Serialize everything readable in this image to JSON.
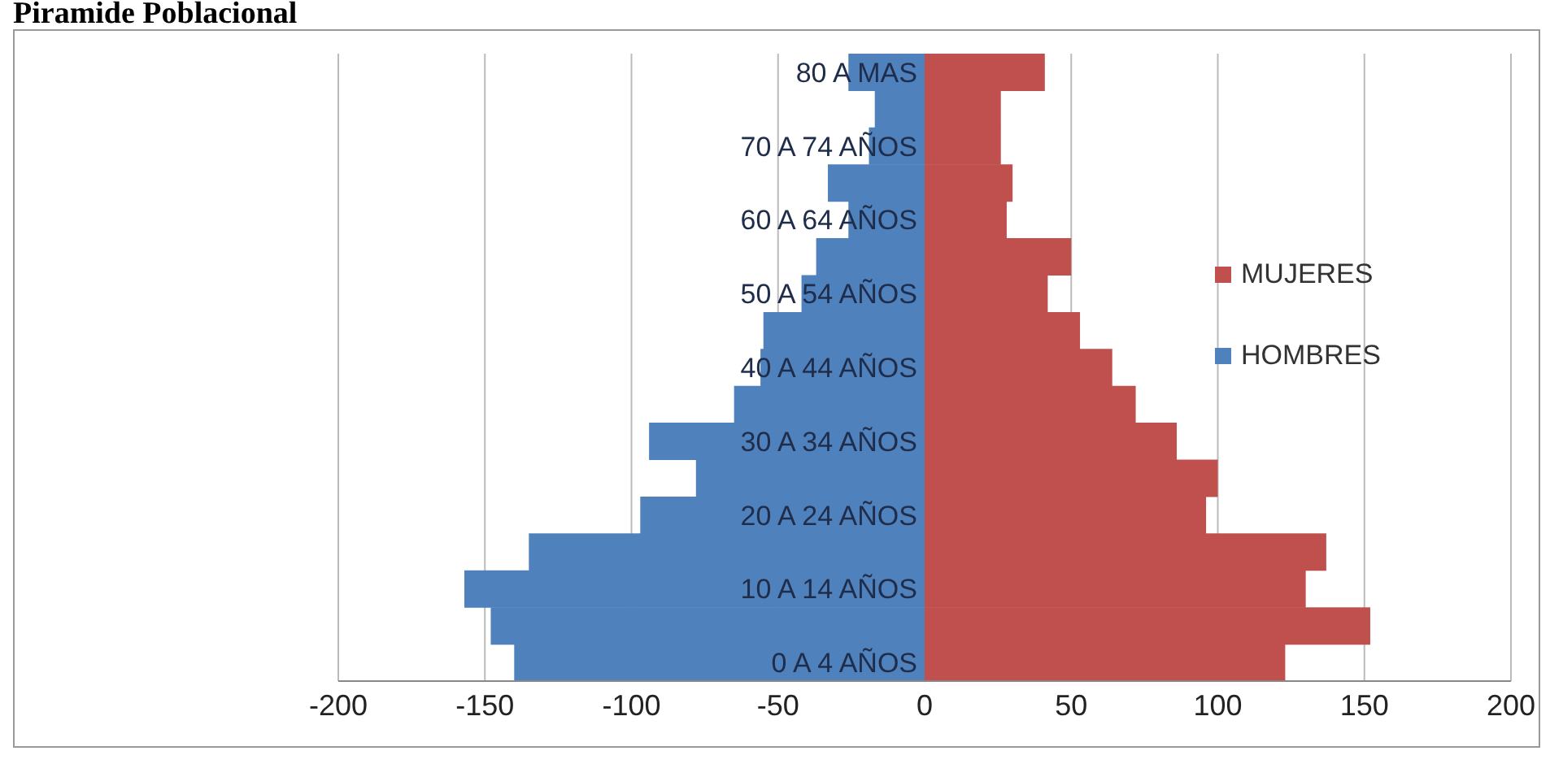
{
  "chart_data": {
    "type": "bar",
    "orientation": "horizontal",
    "title": "Piramide Poblacional",
    "categories": [
      "80 A MAS",
      null,
      "70 A 74 AÑOS",
      null,
      "60 A 64 AÑOS",
      null,
      "50 A  54 AÑOS",
      null,
      "40 A  44 AÑOS",
      null,
      "30 A 34 AÑOS",
      null,
      "20 A 24 AÑOS",
      null,
      "10 A 14 AÑOS",
      null,
      "0 A 4  AÑOS"
    ],
    "series": [
      {
        "name": "MUJERES",
        "color": "#c0504d",
        "values": [
          41,
          26,
          26,
          30,
          28,
          50,
          42,
          53,
          64,
          72,
          86,
          100,
          96,
          137,
          130,
          152,
          123
        ]
      },
      {
        "name": "HOMBRES",
        "color": "#4f81bd",
        "values": [
          -26,
          -17,
          -19,
          -33,
          -26,
          -37,
          -42,
          -55,
          -56,
          -65,
          -94,
          -78,
          -97,
          -135,
          -157,
          -148,
          -140
        ]
      }
    ],
    "xlim": [
      -200,
      200
    ],
    "xticks": [
      -200,
      -150,
      -100,
      -50,
      0,
      50,
      100,
      150,
      200
    ],
    "grid": "x",
    "legend": "right",
    "stacked": true
  }
}
